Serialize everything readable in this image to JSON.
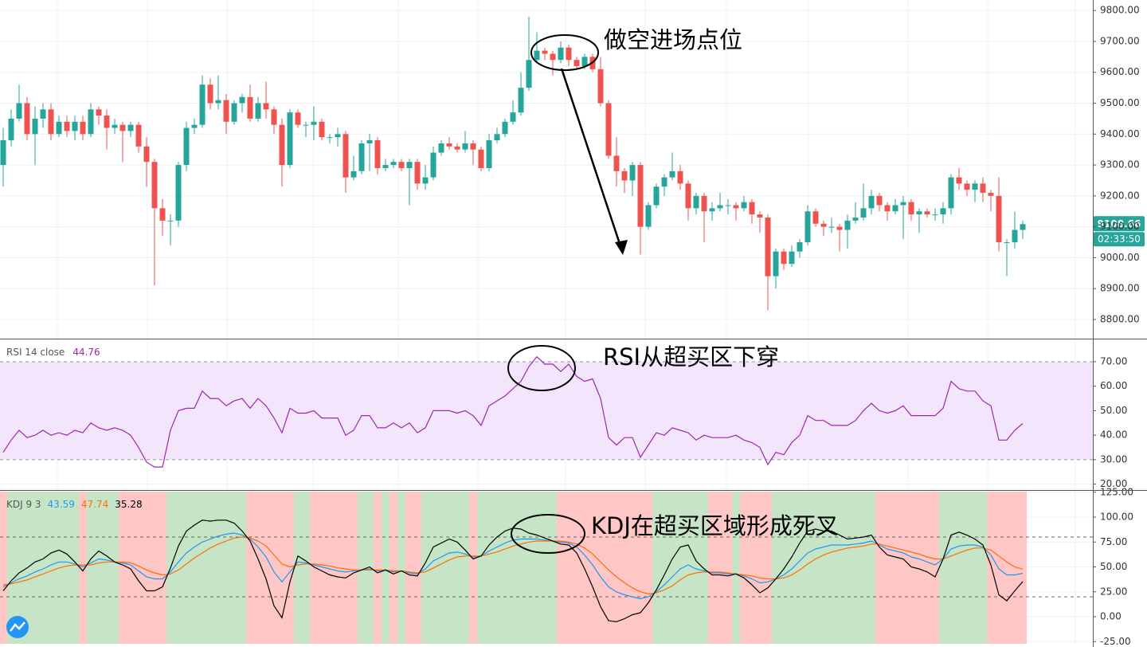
{
  "chart_data": [
    {
      "type": "candlestick",
      "open": [
        9300,
        9380,
        9450,
        9500,
        9400,
        9450,
        9480,
        9400,
        9440,
        9410,
        9440,
        9400,
        9480,
        9460,
        9420,
        9430,
        9410,
        9430,
        9360,
        9310,
        9160,
        9120,
        9120,
        9300,
        9420,
        9430,
        9560,
        9500,
        9510,
        9440,
        9500,
        9520,
        9450,
        9500,
        9480,
        9430,
        9300,
        9470,
        9430,
        9430,
        9440,
        9390,
        9390,
        9400,
        9260,
        9280,
        9370,
        9380,
        9290,
        9300,
        9310,
        9290,
        9310,
        9240,
        9260,
        9340,
        9370,
        9360,
        9350,
        9370,
        9350,
        9290,
        9380,
        9400,
        9440,
        9470,
        9550,
        9640,
        9670,
        9660,
        9640,
        9680,
        9640,
        9620,
        9650,
        9610,
        9500,
        9330,
        9280,
        9250,
        9300,
        9100,
        9170,
        9230,
        9260,
        9280,
        9240,
        9160,
        9200,
        9150,
        9160,
        9170,
        9170,
        9160,
        9180,
        9140,
        9130,
        8940,
        9020,
        8980,
        9020,
        9050,
        9150,
        9110,
        9100,
        9100,
        9090,
        9120,
        9130,
        9160,
        9200,
        9170,
        9150,
        9170,
        9180,
        9140,
        9150,
        9140,
        9140,
        9160,
        9260,
        9240,
        9220,
        9240,
        9210,
        9200,
        9050,
        9050,
        9090
      ],
      "high": [
        9420,
        9480,
        9560,
        9520,
        9490,
        9500,
        9500,
        9460,
        9460,
        9460,
        9460,
        9500,
        9490,
        9480,
        9450,
        9440,
        9440,
        9440,
        9390,
        9320,
        9190,
        9140,
        9310,
        9440,
        9450,
        9590,
        9580,
        9590,
        9530,
        9510,
        9530,
        9560,
        9520,
        9570,
        9490,
        9450,
        9480,
        9480,
        9440,
        9490,
        9450,
        9400,
        9420,
        9410,
        9330,
        9380,
        9400,
        9390,
        9320,
        9320,
        9320,
        9320,
        9320,
        9300,
        9360,
        9380,
        9390,
        9370,
        9410,
        9380,
        9360,
        9400,
        9420,
        9450,
        9510,
        9600,
        9780,
        9730,
        9680,
        9670,
        9700,
        9690,
        9650,
        9660,
        9660,
        9650,
        9510,
        9390,
        9290,
        9310,
        9310,
        9180,
        9240,
        9270,
        9340,
        9300,
        9250,
        9210,
        9210,
        9180,
        9210,
        9190,
        9180,
        9200,
        9190,
        9150,
        9140,
        9030,
        9030,
        9040,
        9060,
        9170,
        9160,
        9120,
        9130,
        9110,
        9140,
        9180,
        9240,
        9220,
        9210,
        9180,
        9190,
        9200,
        9190,
        9160,
        9160,
        9160,
        9180,
        9270,
        9290,
        9250,
        9250,
        9260,
        9220,
        9260,
        9060,
        9150,
        9120
      ],
      "low": [
        9230,
        9360,
        9440,
        9380,
        9300,
        9420,
        9380,
        9390,
        9390,
        9380,
        9380,
        9390,
        9430,
        9350,
        9400,
        9310,
        9390,
        9340,
        9230,
        8910,
        9070,
        9040,
        9100,
        9280,
        9400,
        9420,
        9480,
        9480,
        9400,
        9430,
        9470,
        9440,
        9440,
        9450,
        9400,
        9230,
        9290,
        9420,
        9390,
        9380,
        9380,
        9370,
        9360,
        9210,
        9250,
        9270,
        9280,
        9270,
        9280,
        9290,
        9280,
        9170,
        9220,
        9220,
        9250,
        9330,
        9350,
        9340,
        9340,
        9300,
        9280,
        9280,
        9370,
        9390,
        9430,
        9460,
        9540,
        9630,
        9640,
        9590,
        9630,
        9620,
        9610,
        9610,
        9600,
        9490,
        9320,
        9230,
        9210,
        9200,
        9010,
        9090,
        9160,
        9200,
        9250,
        9220,
        9120,
        9140,
        9050,
        9120,
        9150,
        9140,
        9120,
        9150,
        9110,
        9080,
        8830,
        8900,
        8960,
        8970,
        9000,
        9040,
        9100,
        9070,
        9080,
        9020,
        9030,
        9110,
        9120,
        9140,
        9150,
        9120,
        9140,
        9060,
        9120,
        9080,
        9130,
        9120,
        9110,
        9140,
        9220,
        9200,
        9180,
        9180,
        9150,
        9020,
        8940,
        9030,
        9060
      ],
      "close": [
        9380,
        9450,
        9500,
        9400,
        9450,
        9480,
        9400,
        9440,
        9410,
        9440,
        9400,
        9480,
        9460,
        9420,
        9430,
        9410,
        9430,
        9360,
        9310,
        9160,
        9120,
        9120,
        9300,
        9420,
        9430,
        9560,
        9500,
        9510,
        9440,
        9500,
        9520,
        9450,
        9500,
        9480,
        9430,
        9300,
        9470,
        9430,
        9430,
        9440,
        9390,
        9390,
        9400,
        9260,
        9280,
        9370,
        9380,
        9290,
        9300,
        9310,
        9290,
        9310,
        9240,
        9260,
        9340,
        9370,
        9360,
        9350,
        9370,
        9350,
        9290,
        9380,
        9400,
        9440,
        9470,
        9550,
        9640,
        9670,
        9660,
        9640,
        9680,
        9640,
        9620,
        9650,
        9610,
        9500,
        9330,
        9280,
        9250,
        9300,
        9100,
        9170,
        9230,
        9260,
        9280,
        9240,
        9160,
        9200,
        9150,
        9160,
        9170,
        9170,
        9160,
        9180,
        9140,
        9130,
        8940,
        9020,
        8980,
        9020,
        9050,
        9150,
        9110,
        9100,
        9100,
        9090,
        9120,
        9130,
        9160,
        9200,
        9170,
        9150,
        9170,
        9180,
        9140,
        9150,
        9140,
        9140,
        9160,
        9260,
        9240,
        9220,
        9240,
        9210,
        9200,
        9050,
        9050,
        9090,
        9108.66
      ],
      "up_color": "#26a69a",
      "down_color": "#ef5350",
      "ylim": [
        8738,
        9834
      ],
      "yticks": [
        {
          "value": 8800,
          "label": "8800.00"
        },
        {
          "value": 8900,
          "label": "8900.00"
        },
        {
          "value": 9000,
          "label": "9000.00"
        },
        {
          "value": 9100,
          "label": "9100.00"
        },
        {
          "value": 9200,
          "label": "9200.00"
        },
        {
          "value": 9300,
          "label": "9300.00"
        },
        {
          "value": 9400,
          "label": "9400.00"
        },
        {
          "value": 9500,
          "label": "9500.00"
        },
        {
          "value": 9600,
          "label": "9600.00"
        },
        {
          "value": 9700,
          "label": "9700.00"
        },
        {
          "value": 9800,
          "label": "9800.00"
        }
      ],
      "grid": true,
      "countdown": "02:33:50",
      "annotation": "做空进场点位"
    },
    {
      "type": "line",
      "title": "RSI 14 close",
      "values": [
        33,
        38,
        42,
        39,
        40,
        42,
        40,
        41,
        40,
        42,
        41,
        45,
        43,
        42,
        43,
        42,
        40,
        35,
        29,
        27,
        27,
        42,
        50,
        51,
        51,
        58,
        55,
        55,
        52,
        54,
        55,
        51,
        55,
        52,
        47,
        41,
        51,
        49,
        49,
        50,
        47,
        47,
        47,
        40,
        42,
        48,
        48,
        43,
        43,
        45,
        43,
        45,
        41,
        43,
        50,
        50,
        50,
        49,
        50,
        48,
        44,
        52,
        54,
        56,
        59,
        62,
        68,
        72,
        69,
        69,
        66,
        69,
        64,
        62,
        63,
        55,
        39,
        36,
        39,
        39,
        31,
        36,
        41,
        40,
        43,
        42,
        41,
        38,
        40,
        39,
        39,
        39,
        40,
        38,
        37,
        35,
        28,
        33,
        32,
        37,
        40,
        48,
        46,
        46,
        44,
        44,
        44,
        46,
        50,
        53,
        50,
        49,
        50,
        52,
        48,
        48,
        48,
        48,
        51,
        62,
        59,
        58,
        58,
        54,
        52,
        38,
        38,
        42,
        44.76
      ],
      "color": "#9c27b0",
      "band": [
        30,
        70
      ],
      "band_color": "#f3e5fc",
      "ylim": [
        17.6,
        79.1
      ],
      "yticks": [
        {
          "value": 20,
          "label": "20.00"
        },
        {
          "value": 30,
          "label": "30.00"
        },
        {
          "value": 40,
          "label": "40.00"
        },
        {
          "value": 50,
          "label": "50.00"
        },
        {
          "value": 60,
          "label": "60.00"
        },
        {
          "value": 70,
          "label": "70.00"
        }
      ],
      "grid": true,
      "annotation": "RSI从超买区下穿"
    },
    {
      "type": "kdj",
      "title": "KDJ 9 3",
      "series": [
        {
          "color": "#2196f3",
          "values": [
            30,
            34,
            38,
            41,
            45,
            48,
            52,
            55,
            55,
            53,
            50,
            54,
            58,
            57,
            55,
            54,
            52,
            46,
            40,
            38,
            38,
            45,
            55,
            64,
            70,
            75,
            78,
            81,
            83,
            84,
            82,
            78,
            70,
            60,
            45,
            35,
            45,
            55,
            54,
            52,
            50,
            48,
            46,
            45,
            46,
            47,
            48,
            46,
            47,
            45,
            46,
            44,
            43,
            48,
            56,
            60,
            64,
            65,
            63,
            60,
            61,
            66,
            70,
            74,
            77,
            78,
            78,
            78,
            77,
            76,
            75,
            74,
            70,
            62,
            52,
            40,
            30,
            25,
            22,
            20,
            18,
            20,
            25,
            32,
            40,
            48,
            52,
            48,
            46,
            44,
            44,
            43,
            43,
            41,
            38,
            34,
            35,
            38,
            42,
            48,
            56,
            64,
            68,
            70,
            72,
            72,
            72,
            73,
            74,
            76,
            72,
            68,
            66,
            64,
            60,
            58,
            55,
            52,
            58,
            68,
            71,
            72,
            72,
            70,
            62,
            48,
            42,
            42,
            43.59
          ]
        },
        {
          "color": "#ff6d00",
          "values": [
            32,
            33,
            35,
            37,
            40,
            43,
            46,
            49,
            51,
            52,
            52,
            52,
            54,
            55,
            55,
            55,
            54,
            51,
            47,
            44,
            42,
            43,
            47,
            53,
            59,
            64,
            69,
            73,
            76,
            79,
            80,
            79,
            76,
            71,
            62,
            53,
            50,
            52,
            53,
            53,
            52,
            51,
            49,
            48,
            47,
            47,
            47,
            47,
            47,
            46,
            46,
            45,
            44,
            45,
            49,
            53,
            57,
            60,
            61,
            61,
            61,
            63,
            65,
            68,
            71,
            73,
            75,
            76,
            76,
            76,
            76,
            75,
            73,
            69,
            63,
            55,
            47,
            40,
            34,
            29,
            25,
            23,
            24,
            27,
            31,
            37,
            42,
            44,
            45,
            45,
            45,
            44,
            43,
            42,
            41,
            39,
            38,
            38,
            39,
            42,
            47,
            53,
            58,
            62,
            65,
            67,
            69,
            70,
            71,
            73,
            73,
            71,
            69,
            67,
            65,
            63,
            60,
            58,
            58,
            61,
            64,
            67,
            69,
            69,
            67,
            61,
            55,
            50,
            47.74
          ]
        },
        {
          "color": "#000000",
          "values": [
            26,
            36,
            44,
            49,
            55,
            58,
            64,
            67,
            63,
            55,
            46,
            58,
            66,
            61,
            55,
            52,
            48,
            36,
            26,
            26,
            30,
            49,
            71,
            86,
            92,
            97,
            96,
            97,
            97,
            94,
            86,
            76,
            58,
            38,
            11,
            -1,
            35,
            61,
            56,
            50,
            46,
            42,
            40,
            39,
            44,
            47,
            50,
            44,
            47,
            43,
            46,
            42,
            41,
            54,
            70,
            74,
            78,
            75,
            67,
            58,
            61,
            72,
            80,
            86,
            89,
            88,
            84,
            82,
            79,
            76,
            73,
            72,
            64,
            48,
            30,
            10,
            -4,
            -5,
            -2,
            2,
            4,
            14,
            27,
            42,
            58,
            70,
            72,
            56,
            48,
            42,
            42,
            41,
            43,
            39,
            32,
            24,
            29,
            38,
            48,
            60,
            74,
            86,
            88,
            86,
            86,
            82,
            78,
            79,
            80,
            82,
            70,
            62,
            60,
            58,
            50,
            48,
            45,
            40,
            58,
            82,
            85,
            82,
            78,
            72,
            52,
            22,
            16,
            26,
            35.28
          ]
        }
      ],
      "levels": [
        20,
        80
      ],
      "up_color": "#c6e5c6",
      "down_color": "#ffc6c6",
      "ylim": [
        -27.2,
        125.6
      ],
      "yticks": [
        {
          "value": -25,
          "label": "-25.00"
        },
        {
          "value": 0,
          "label": "0.00"
        },
        {
          "value": 25,
          "label": "25.00"
        },
        {
          "value": 50,
          "label": "50.00"
        },
        {
          "value": 75,
          "label": "75.00"
        },
        {
          "value": 100,
          "label": "100.00"
        },
        {
          "value": 125,
          "label": "125.00"
        }
      ],
      "grid": true,
      "annotation": "KDJ在超买区域形成死叉"
    }
  ]
}
